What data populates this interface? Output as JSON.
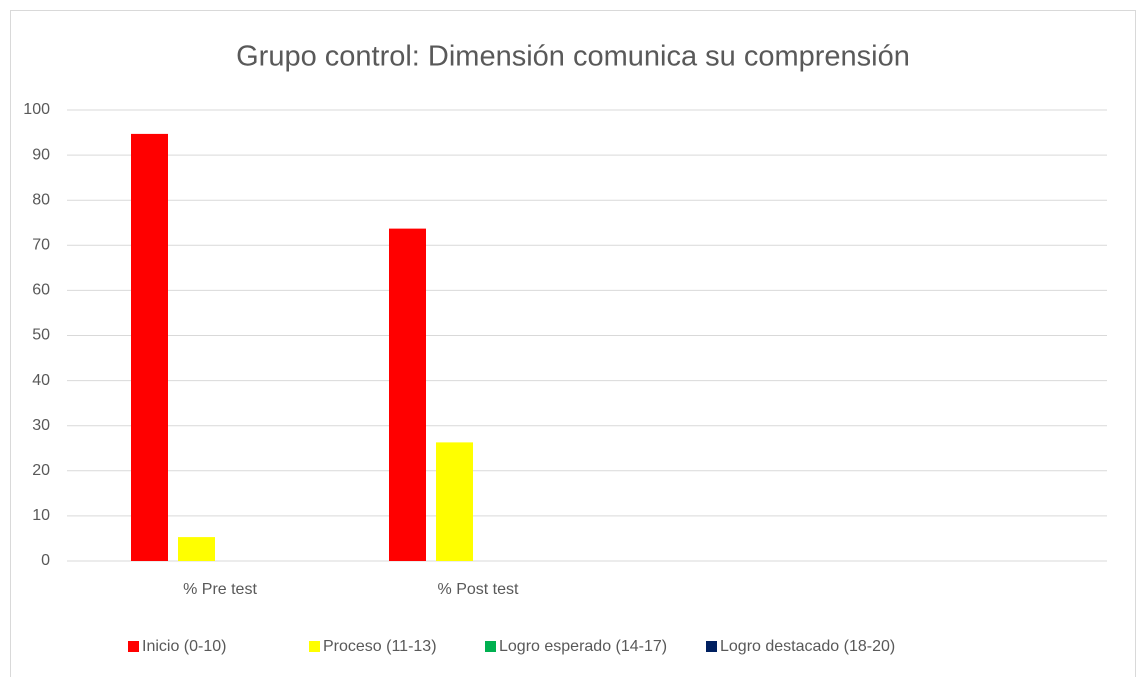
{
  "chart_data": {
    "type": "bar",
    "title": "Grupo control: Dimensión comunica su comprensión",
    "categories": [
      "% Pre test",
      "% Post test",
      null,
      null
    ],
    "series": [
      {
        "name": "Inicio (0-10)",
        "color": "#ff0000",
        "values": [
          94.7,
          73.7,
          null,
          null
        ]
      },
      {
        "name": "Proceso (11-13)",
        "color": "#ffff00",
        "values": [
          5.3,
          26.3,
          null,
          null
        ]
      },
      {
        "name": "Logro esperado (14-17)",
        "color": "#00b050",
        "values": [
          0,
          0,
          null,
          null
        ]
      },
      {
        "name": "Logro destacado (18-20)",
        "color": "#002060",
        "values": [
          0,
          0,
          null,
          null
        ]
      }
    ],
    "ylim": [
      0,
      100
    ],
    "yticks": [
      0,
      10,
      20,
      30,
      40,
      50,
      60,
      70,
      80,
      90,
      100
    ],
    "grid": true,
    "legend": "bottom"
  }
}
